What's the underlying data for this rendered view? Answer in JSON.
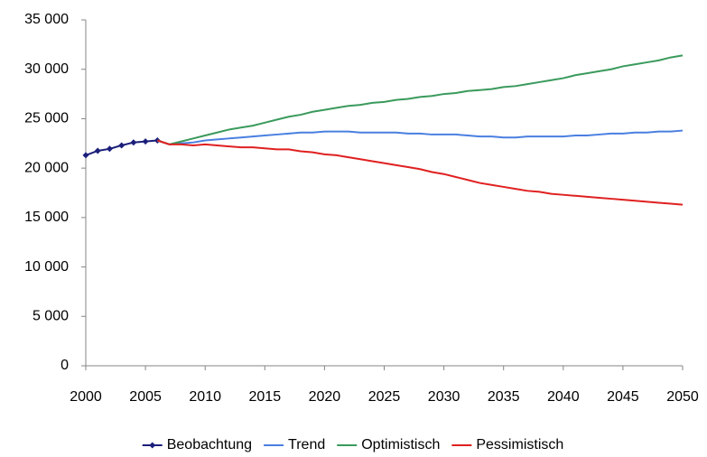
{
  "chart_data": {
    "type": "line",
    "x": [
      2000,
      2001,
      2002,
      2003,
      2004,
      2005,
      2006,
      2007,
      2008,
      2009,
      2010,
      2011,
      2012,
      2013,
      2014,
      2015,
      2016,
      2017,
      2018,
      2019,
      2020,
      2021,
      2022,
      2023,
      2024,
      2025,
      2026,
      2027,
      2028,
      2029,
      2030,
      2031,
      2032,
      2033,
      2034,
      2035,
      2036,
      2037,
      2038,
      2039,
      2040,
      2041,
      2042,
      2043,
      2044,
      2045,
      2046,
      2047,
      2048,
      2049,
      2050
    ],
    "series": [
      {
        "name": "Beobachtung",
        "color": "#1b1f7a",
        "marker": "diamond",
        "values": [
          21300,
          21750,
          21950,
          22300,
          22600,
          22700,
          22800,
          null,
          null,
          null,
          null,
          null,
          null,
          null,
          null,
          null,
          null,
          null,
          null,
          null,
          null,
          null,
          null,
          null,
          null,
          null,
          null,
          null,
          null,
          null,
          null,
          null,
          null,
          null,
          null,
          null,
          null,
          null,
          null,
          null,
          null,
          null,
          null,
          null,
          null,
          null,
          null,
          null,
          null,
          null,
          null
        ]
      },
      {
        "name": "Trend",
        "color": "#4a7fe0",
        "values": [
          null,
          null,
          null,
          null,
          null,
          null,
          22800,
          22400,
          22500,
          22600,
          22800,
          22900,
          23000,
          23100,
          23200,
          23300,
          23400,
          23500,
          23600,
          23600,
          23700,
          23700,
          23700,
          23600,
          23600,
          23600,
          23600,
          23500,
          23500,
          23400,
          23400,
          23400,
          23300,
          23200,
          23200,
          23100,
          23100,
          23200,
          23200,
          23200,
          23200,
          23300,
          23300,
          23400,
          23500,
          23500,
          23600,
          23600,
          23700,
          23700,
          23800
        ]
      },
      {
        "name": "Optimistisch",
        "color": "#3a9a5c",
        "values": [
          null,
          null,
          null,
          null,
          null,
          null,
          22800,
          22400,
          22700,
          23000,
          23300,
          23600,
          23900,
          24100,
          24300,
          24600,
          24900,
          25200,
          25400,
          25700,
          25900,
          26100,
          26300,
          26400,
          26600,
          26700,
          26900,
          27000,
          27200,
          27300,
          27500,
          27600,
          27800,
          27900,
          28000,
          28200,
          28300,
          28500,
          28700,
          28900,
          29100,
          29400,
          29600,
          29800,
          30000,
          30300,
          30500,
          30700,
          30900,
          31200,
          31400
        ]
      },
      {
        "name": "Pessimistisch",
        "color": "#e02020",
        "values": [
          null,
          null,
          null,
          null,
          null,
          null,
          22800,
          22400,
          22400,
          22300,
          22400,
          22300,
          22200,
          22100,
          22100,
          22000,
          21900,
          21900,
          21700,
          21600,
          21400,
          21300,
          21100,
          20900,
          20700,
          20500,
          20300,
          20100,
          19900,
          19600,
          19400,
          19100,
          18800,
          18500,
          18300,
          18100,
          17900,
          17700,
          17600,
          17400,
          17300,
          17200,
          17100,
          17000,
          16900,
          16800,
          16700,
          16600,
          16500,
          16400,
          16300
        ]
      }
    ],
    "xlim": [
      2000,
      2050
    ],
    "xticks": [
      2000,
      2005,
      2010,
      2015,
      2020,
      2025,
      2030,
      2035,
      2040,
      2045,
      2050
    ],
    "ylim": [
      0,
      35000
    ],
    "yticks": [
      0,
      {
        "value": 5000,
        "label": "5 000"
      },
      {
        "value": 10000,
        "label": "10 000"
      },
      {
        "value": 15000,
        "label": "15 000"
      },
      {
        "value": 20000,
        "label": "20 000"
      },
      {
        "value": 25000,
        "label": "25 000"
      },
      {
        "value": 30000,
        "label": "30 000"
      },
      {
        "value": 35000,
        "label": "35 000"
      }
    ],
    "grid": false,
    "legend": "bottom"
  }
}
